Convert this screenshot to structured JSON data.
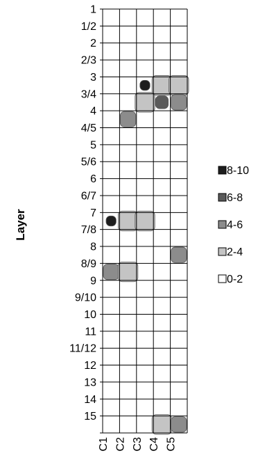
{
  "chart_data": {
    "type": "heatmap",
    "title": "",
    "xlabel": "",
    "ylabel": "Layer",
    "x_categories": [
      "C1",
      "C2",
      "C3",
      "C4",
      "C5"
    ],
    "y_categories": [
      "1",
      "1/2",
      "2",
      "2/3",
      "3",
      "3/4",
      "4",
      "4/5",
      "5",
      "5/6",
      "6",
      "6/7",
      "7",
      "7/8",
      "8",
      "8/9",
      "9",
      "9/10",
      "10",
      "11",
      "11/12",
      "12",
      "13",
      "14",
      "15"
    ],
    "legend": [
      {
        "label": "8-10",
        "color": "#1e1e1e"
      },
      {
        "label": "6-8",
        "color": "#5a5a5a"
      },
      {
        "label": "4-6",
        "color": "#8c8c8c"
      },
      {
        "label": "2-4",
        "color": "#c4c4c4"
      },
      {
        "label": "0-2",
        "color": "#ffffff"
      }
    ],
    "levels": [
      {
        "range": "8-10",
        "color": "#1e1e1e"
      },
      {
        "range": "6-8",
        "color": "#5a5a5a"
      },
      {
        "range": "4-6",
        "color": "#8c8c8c"
      },
      {
        "range": "2-4",
        "color": "#c4c4c4"
      }
    ],
    "values": [
      [
        0,
        0,
        0,
        0,
        0
      ],
      [
        0,
        0,
        0,
        0,
        0
      ],
      [
        0,
        0,
        0,
        0,
        0
      ],
      [
        0,
        0,
        0,
        0,
        0
      ],
      [
        0,
        0,
        8,
        3,
        3
      ],
      [
        0,
        0,
        3,
        7,
        5
      ],
      [
        0,
        5,
        0,
        0,
        0
      ],
      [
        0,
        0,
        0,
        0,
        0
      ],
      [
        0,
        0,
        0,
        0,
        0
      ],
      [
        0,
        0,
        0,
        0,
        0
      ],
      [
        0,
        0,
        0,
        0,
        0
      ],
      [
        0,
        0,
        0,
        0,
        0
      ],
      [
        9,
        3,
        3,
        0,
        0
      ],
      [
        0,
        0,
        0,
        0,
        0
      ],
      [
        0,
        0,
        0,
        0,
        4
      ],
      [
        4,
        3,
        0,
        0,
        0
      ],
      [
        0,
        0,
        0,
        0,
        0
      ],
      [
        0,
        0,
        0,
        0,
        0
      ],
      [
        0,
        0,
        0,
        0,
        0
      ],
      [
        0,
        0,
        0,
        0,
        0
      ],
      [
        0,
        0,
        0,
        0,
        0
      ],
      [
        0,
        0,
        0,
        0,
        0
      ],
      [
        0,
        0,
        0,
        0,
        0
      ],
      [
        0,
        0,
        0,
        0,
        0
      ],
      [
        0,
        0,
        0,
        3,
        5
      ]
    ],
    "grid": true
  }
}
